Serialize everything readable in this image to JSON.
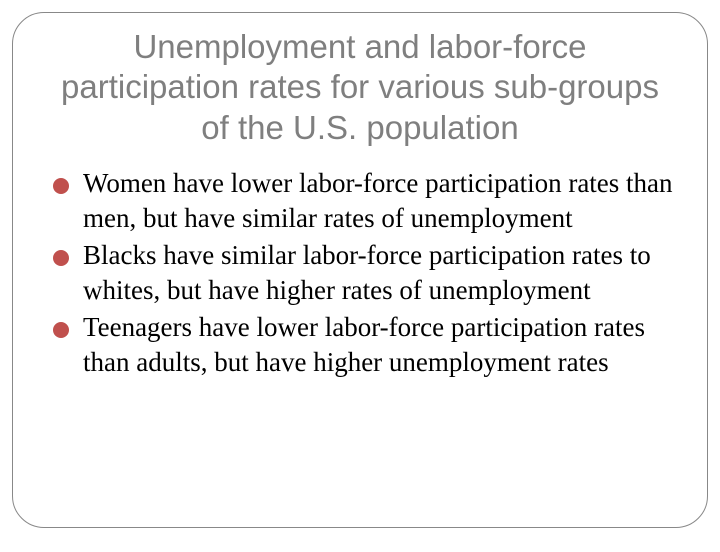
{
  "slide": {
    "title": "Unemployment and labor-force participation rates for various sub-groups of the U.S. population",
    "title_color": "#7f7f7f",
    "title_fontsize": 33,
    "title_font": "Arial, Helvetica, sans-serif",
    "border_color": "#888888",
    "border_radius": 32,
    "background_color": "#ffffff",
    "bullet_color": "#c0504d",
    "bullet_size": 16,
    "body_fontsize": 27,
    "body_color": "#000000",
    "body_font": "Georgia, 'Times New Roman', serif",
    "bullets": [
      "Women have lower labor-force participation rates than men, but have similar rates of unemployment",
      "Blacks have similar labor-force participation rates to whites, but have higher rates of unemployment",
      "Teenagers have lower labor-force participation rates than adults, but have higher unemployment rates"
    ]
  }
}
